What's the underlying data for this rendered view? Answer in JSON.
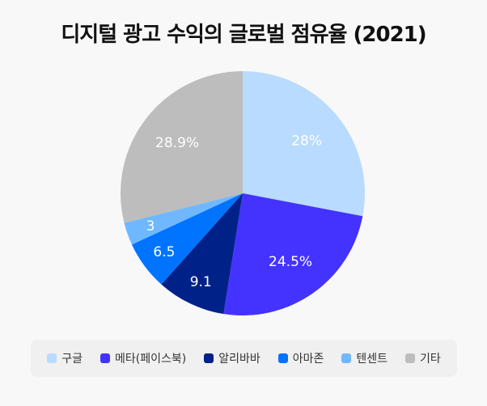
{
  "title": "디지털 광고 수익의 글로벌 점유율 (2021)",
  "chart_data": {
    "type": "pie",
    "title": "디지털 광고 수익의 글로벌 점유율 (2021)",
    "categories": [
      "구글",
      "메타(페이스북)",
      "알리바바",
      "아마존",
      "텐센트",
      "기타"
    ],
    "values": [
      28,
      24.5,
      9.1,
      6.5,
      3,
      28.9
    ],
    "data_labels": [
      "28%",
      "24.5%",
      "9.1",
      "6.5",
      "3",
      "28.9%"
    ],
    "colors": [
      "#b8dbff",
      "#4433ff",
      "#002288",
      "#0073ff",
      "#6fb8ff",
      "#bdbdbd"
    ],
    "start_angle": "12 o'clock",
    "direction": "clockwise",
    "legend_position": "bottom"
  },
  "legend": [
    {
      "label": "구글",
      "color": "#b8dbff"
    },
    {
      "label": "메타(페이스북)",
      "color": "#4433ff"
    },
    {
      "label": "알리바바",
      "color": "#002288"
    },
    {
      "label": "아마존",
      "color": "#0073ff"
    },
    {
      "label": "텐센트",
      "color": "#6fb8ff"
    },
    {
      "label": "기타",
      "color": "#bdbdbd"
    }
  ]
}
